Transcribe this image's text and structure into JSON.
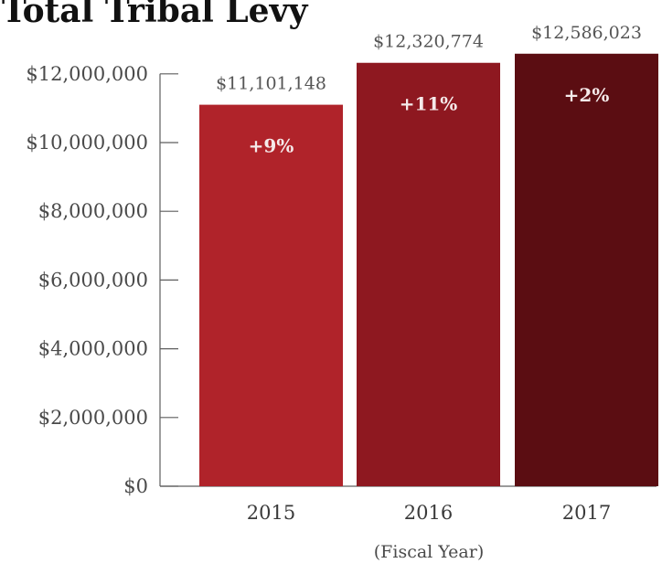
{
  "chart_data": {
    "type": "bar",
    "title": "Total Tribal Levy",
    "xlabel": "(Fiscal Year)",
    "ylabel": "",
    "categories": [
      "2015",
      "2016",
      "2017"
    ],
    "values": [
      11101148,
      12320774,
      12586023
    ],
    "value_labels": [
      "$11,101,148",
      "$12,320,774",
      "$12,586,023"
    ],
    "change_labels": [
      "+9%",
      "+11%",
      "+2%"
    ],
    "bar_colors": [
      "#b0232a",
      "#8e1820",
      "#5b0d12"
    ],
    "y_ticks": [
      0,
      2000000,
      4000000,
      6000000,
      8000000,
      10000000,
      12000000
    ],
    "y_tick_labels": [
      "$0",
      "$2,000,000",
      "$4,000,000",
      "$6,000,000",
      "$8,000,000",
      "$10,000,000",
      "$12,000,000"
    ],
    "ylim": [
      0,
      12600000
    ],
    "grid": false,
    "legend": "none"
  }
}
